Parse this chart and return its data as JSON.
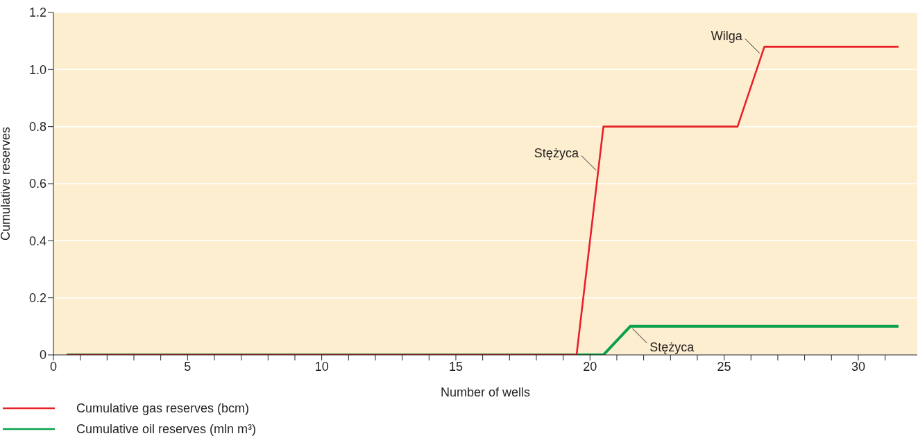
{
  "chart_data": {
    "type": "line",
    "xlabel": "Number of wells",
    "ylabel": "Cumulative reserves",
    "xlim": [
      0,
      32.2
    ],
    "ylim": [
      0,
      1.2
    ],
    "xticks": [
      0,
      {
        "value": 1,
        "label": null
      },
      {
        "value": 2,
        "label": null
      },
      {
        "value": 3,
        "label": null
      },
      {
        "value": 4,
        "label": null
      },
      5,
      {
        "value": 6,
        "label": null
      },
      {
        "value": 7,
        "label": null
      },
      {
        "value": 8,
        "label": null
      },
      {
        "value": 9,
        "label": null
      },
      10,
      {
        "value": 11,
        "label": null
      },
      {
        "value": 12,
        "label": null
      },
      {
        "value": 13,
        "label": null
      },
      {
        "value": 14,
        "label": null
      },
      15,
      {
        "value": 16,
        "label": null
      },
      {
        "value": 17,
        "label": null
      },
      {
        "value": 18,
        "label": null
      },
      {
        "value": 19,
        "label": null
      },
      20,
      {
        "value": 21,
        "label": null
      },
      {
        "value": 22,
        "label": null
      },
      {
        "value": 23,
        "label": null
      },
      {
        "value": 24,
        "label": null
      },
      25,
      {
        "value": 26,
        "label": null
      },
      {
        "value": 27,
        "label": null
      },
      {
        "value": 28,
        "label": null
      },
      {
        "value": 29,
        "label": null
      },
      30,
      {
        "value": 31,
        "label": null
      }
    ],
    "yticks": [
      0,
      0.2,
      0.4,
      0.6,
      0.8,
      {
        "value": 1,
        "label": "1.0"
      },
      1.2
    ],
    "grid": "y",
    "legend": "bottom left",
    "marker": "none",
    "line_style": "solid",
    "series": [
      {
        "name": "Cumulative gas reserves (bcm)",
        "color": "#e8202a",
        "x": [
          0.5,
          19.5,
          20.5,
          25.5,
          26.5,
          31.5
        ],
        "values": [
          0,
          0,
          0.8,
          0.8,
          1.08,
          1.08
        ]
      },
      {
        "name": "Cumulative oil reserves (mln m³)",
        "color": "#0aa14b",
        "x": [
          0.5,
          20.5,
          21.5,
          31.5
        ],
        "values": [
          0,
          0,
          0.1,
          0.1
        ]
      }
    ],
    "annotations": [
      {
        "text": "Stężyca",
        "x": 20.3,
        "y": 0.64
      },
      {
        "text": "Wilga",
        "x": 26.4,
        "y": 1.05
      },
      {
        "text": "Stężyca",
        "x": 21.5,
        "y": 0.1
      }
    ]
  }
}
